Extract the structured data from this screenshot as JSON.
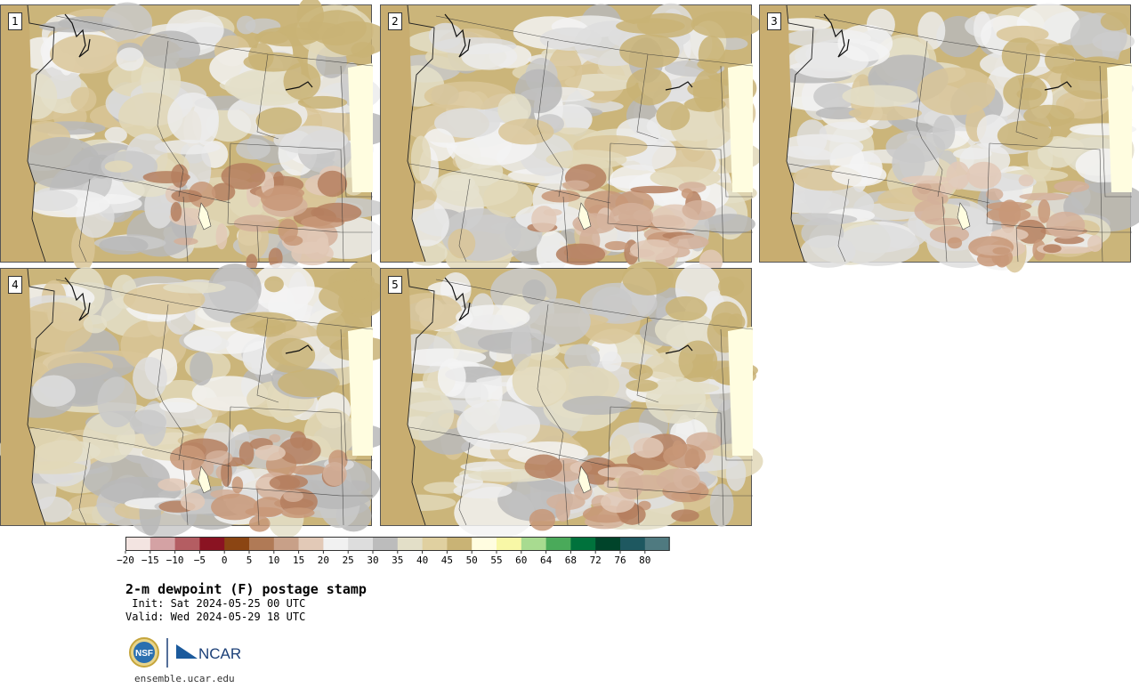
{
  "panels": [
    {
      "label": "1"
    },
    {
      "label": "2"
    },
    {
      "label": "3"
    },
    {
      "label": "4"
    },
    {
      "label": "5"
    }
  ],
  "colorbar": {
    "tick_labels": [
      "−20",
      "−15",
      "−10",
      "−5",
      "0",
      "5",
      "10",
      "15",
      "20",
      "25",
      "30",
      "35",
      "40",
      "45",
      "50",
      "55",
      "60",
      "64",
      "68",
      "72",
      "76",
      "80"
    ],
    "colors": [
      "#f3e4e1",
      "#d4a2a4",
      "#b45d62",
      "#8a1322",
      "#8b4513",
      "#b07a56",
      "#c8a088",
      "#e2c9b7",
      "#f1f1f1",
      "#dddddd",
      "#bcbcbc",
      "#e3dfc8",
      "#e0d0a0",
      "#c9b375",
      "#fffde0",
      "#f8f7a6",
      "#a8db90",
      "#4aaa5a",
      "#00723c",
      "#00442a",
      "#1e5860",
      "#4f7a80"
    ]
  },
  "title": "2-m dewpoint (F) postage stamp",
  "init": " Init: Sat 2024-05-25 00 UTC",
  "valid": "Valid: Wed 2024-05-29 18 UTC",
  "logo": {
    "nsf": "NSF",
    "ncar": "NCAR"
  },
  "website": "ensemble.ucar.edu"
}
